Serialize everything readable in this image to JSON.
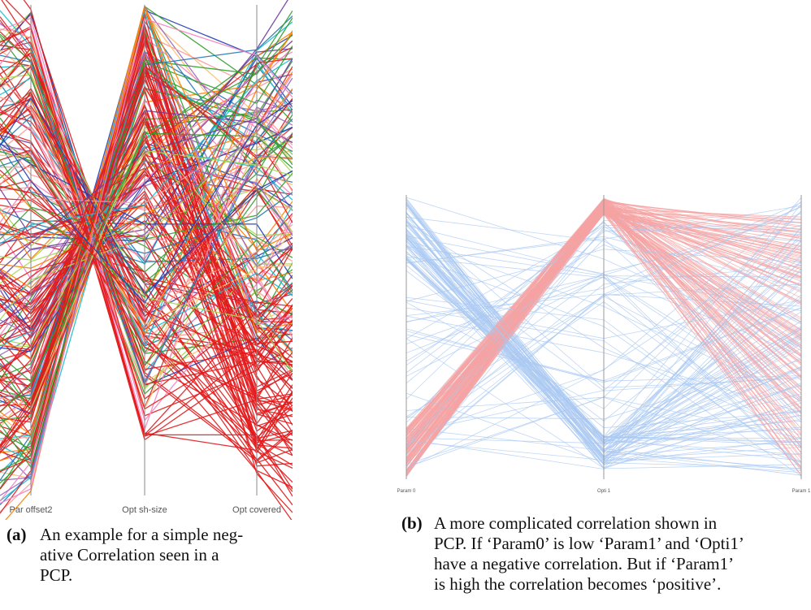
{
  "figure_a": {
    "axes": [
      "Par offset2",
      "Opt sh-size",
      "Opt covered"
    ],
    "caption_tag": "(a)",
    "caption_lines": [
      "An example for a simple neg-",
      "ative Correlation seen in a",
      "PCP."
    ],
    "colors": [
      "#e31a1c",
      "#33a02c",
      "#1f78b4",
      "#ff7f00",
      "#6a3d9a",
      "#a6d854",
      "#fdbf6f",
      "#d62728",
      "#9467bd",
      "#2ca02c",
      "#17becf",
      "#f781bf",
      "#fb9a99",
      "#1f3fb4"
    ]
  },
  "figure_b": {
    "axes": [
      "Param 0",
      "Opti 1",
      "Param 1"
    ],
    "caption_tag": "(b)",
    "caption_lines": [
      "A more complicated correlation shown in",
      "PCP. If ‘Param0’ is low ‘Param1’ and ‘Opti1’",
      "have a negative correlation. But if ‘Param1’",
      "is high the correlation becomes ‘positive’."
    ],
    "colors": [
      "#a9c8f2",
      "#f5a3a3"
    ]
  }
}
